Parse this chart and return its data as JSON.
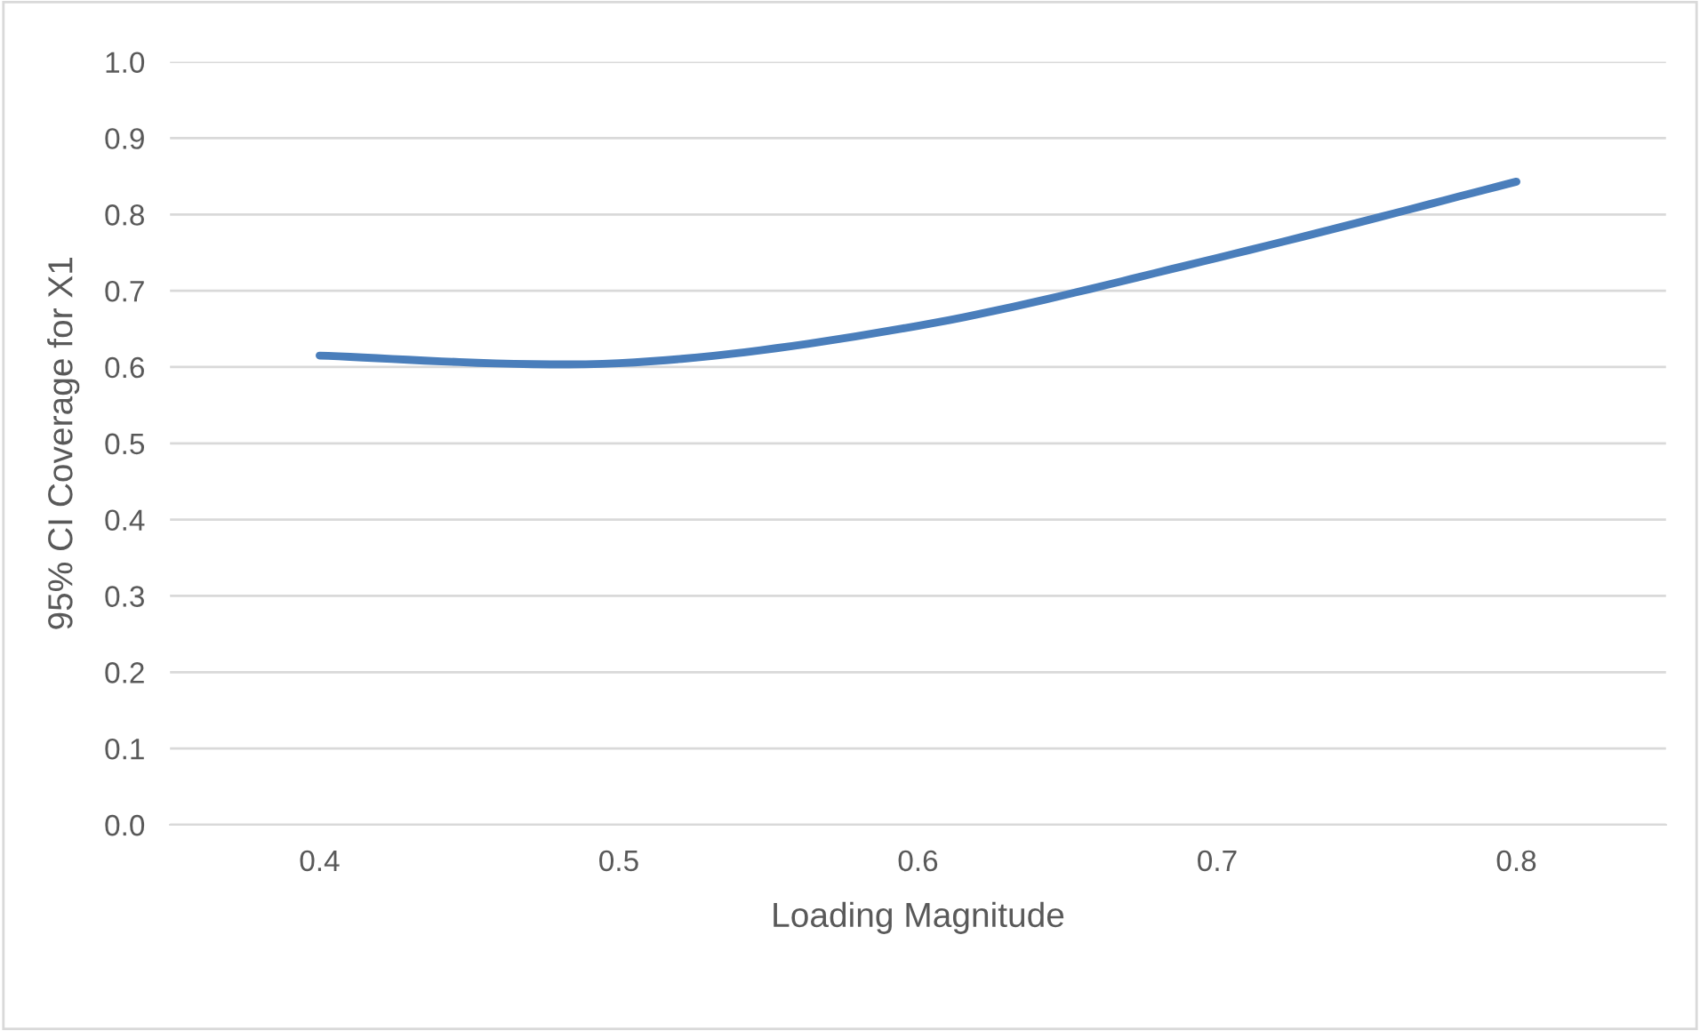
{
  "chart_data": {
    "type": "line",
    "xlabel": "Loading Magnitude",
    "ylabel": "95% CI Coverage for X1",
    "categories": [
      "0.4",
      "0.5",
      "0.6",
      "0.7",
      "0.8"
    ],
    "series": [
      {
        "color": "#4a7ebb",
        "values": [
          0.615,
          0.605,
          0.654,
          0.743,
          0.843
        ]
      }
    ],
    "ylim": [
      0.0,
      1.0
    ],
    "yticks": [
      {
        "value": 0.0,
        "label": "0.0"
      },
      0.1,
      0.2,
      0.3,
      0.4,
      0.5,
      0.6,
      0.7,
      0.8,
      0.9,
      {
        "value": 1.0,
        "label": "1.0"
      }
    ],
    "grid": "y",
    "line_style": "solid",
    "marker": "none"
  }
}
